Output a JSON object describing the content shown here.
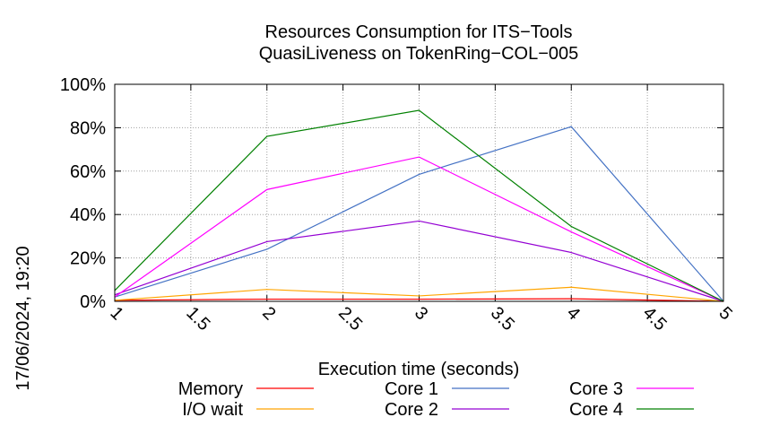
{
  "chart_data": {
    "type": "line",
    "title_line1": "Resources Consumption for ITS−Tools",
    "title_line2": "QuasiLiveness on TokenRing−COL−005",
    "xlabel": "Execution time (seconds)",
    "ylabel": "",
    "side_label": "17/06/2024, 19:20",
    "xlim": [
      1,
      5
    ],
    "ylim": [
      0,
      100
    ],
    "x_ticks": [
      1,
      1.5,
      2,
      2.5,
      3,
      3.5,
      4,
      4.5,
      5
    ],
    "x_tick_labels": [
      "1",
      "1.5",
      "2",
      "2.5",
      "3",
      "3.5",
      "4",
      "4.5",
      "5"
    ],
    "y_ticks": [
      0,
      20,
      40,
      60,
      80,
      100
    ],
    "y_tick_labels": [
      "0%",
      "20%",
      "40%",
      "60%",
      "80%",
      "100%"
    ],
    "grid": true,
    "legend_placement": "bottom",
    "x": [
      1,
      2,
      3,
      4,
      5
    ],
    "series": [
      {
        "name": "Memory",
        "color": "#ff0000",
        "values": [
          0.5,
          1,
          1,
          1.2,
          0
        ]
      },
      {
        "name": "I/O wait",
        "color": "#ffa500",
        "values": [
          0.5,
          5.5,
          2.5,
          6.5,
          0
        ]
      },
      {
        "name": "Core 1",
        "color": "#4472c4",
        "values": [
          2,
          24,
          58.5,
          80.5,
          0
        ]
      },
      {
        "name": "Core 2",
        "color": "#9400d3",
        "values": [
          3,
          27.5,
          37,
          22.5,
          0
        ]
      },
      {
        "name": "Core 3",
        "color": "#ff00ff",
        "values": [
          2,
          51.5,
          66.5,
          32,
          0
        ]
      },
      {
        "name": "Core 4",
        "color": "#008000",
        "values": [
          5,
          76,
          88,
          34.5,
          0
        ]
      }
    ]
  }
}
